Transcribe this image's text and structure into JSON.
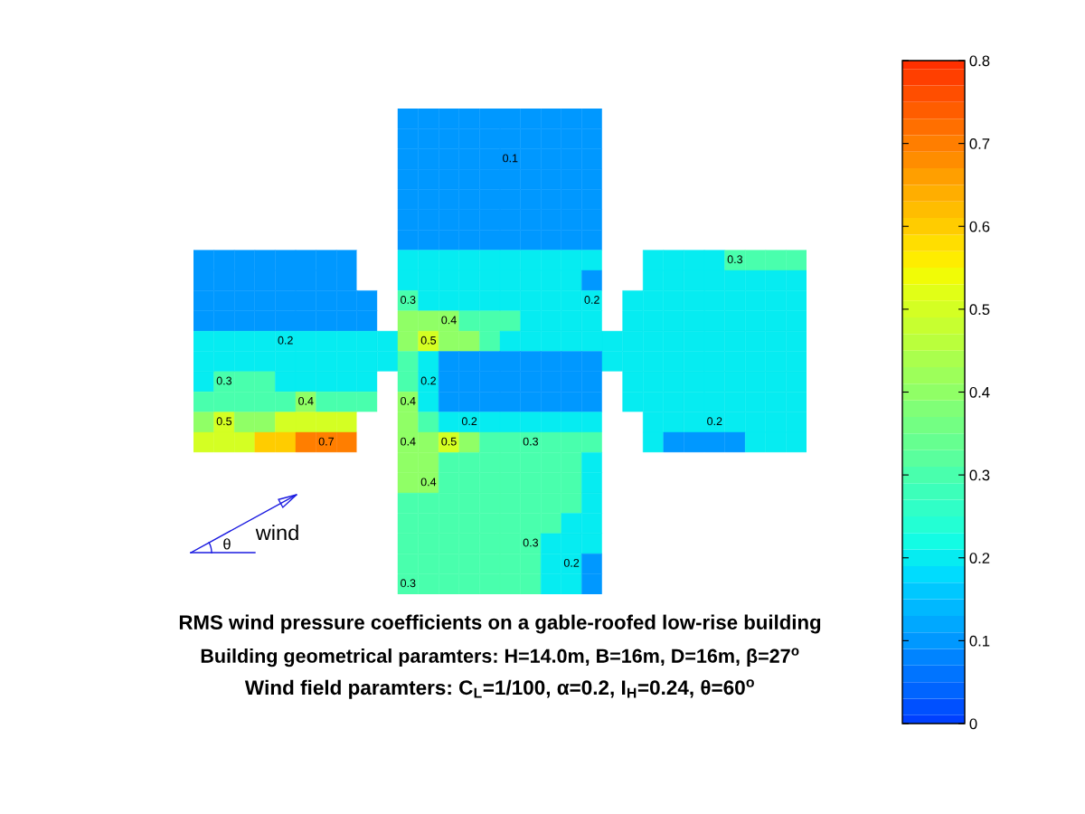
{
  "chart_data": {
    "type": "heatmap",
    "title": "RMS wind pressure coefficients on a gable-roofed low-rise building",
    "subtitle": "Building geometrical paramters: H=14.0m, B=16m, D=16m, β=27$^{o}$",
    "annotations": [
      "Wind field paramters: C$_{L}$=1/100, α=0.2, I$_{H}$=0.24, θ=60$^{o}$",
      "θ",
      "wind"
    ],
    "categories": [
      null,
      null,
      null,
      null,
      null,
      null,
      null,
      null,
      null,
      null,
      null,
      null,
      null,
      null,
      null,
      null,
      null,
      null,
      null,
      null,
      null,
      null,
      null,
      null,
      null,
      null,
      null,
      null,
      null,
      null
    ],
    "y_categories": [
      null,
      null,
      null,
      null,
      null,
      null,
      null,
      null,
      null,
      null,
      null,
      null,
      null,
      null,
      null,
      null,
      null,
      null,
      null,
      null,
      null,
      null,
      null,
      null
    ],
    "cells": [
      [
        null,
        null,
        null,
        null,
        null,
        null,
        null,
        null,
        null,
        null,
        0.1,
        0.1,
        0.1,
        0.1,
        0.1,
        0.1,
        0.1,
        0.1,
        0.1,
        0.1,
        null,
        null,
        null,
        null,
        null,
        null,
        null,
        null,
        null,
        null
      ],
      [
        null,
        null,
        null,
        null,
        null,
        null,
        null,
        null,
        null,
        null,
        0.1,
        0.1,
        0.1,
        0.1,
        0.1,
        0.1,
        0.1,
        0.1,
        0.1,
        0.1,
        null,
        null,
        null,
        null,
        null,
        null,
        null,
        null,
        null,
        null
      ],
      [
        null,
        null,
        null,
        null,
        null,
        null,
        null,
        null,
        null,
        null,
        0.1,
        0.1,
        0.1,
        0.1,
        0.1,
        0.1,
        0.1,
        0.1,
        0.1,
        0.1,
        null,
        null,
        null,
        null,
        null,
        null,
        null,
        null,
        null,
        null
      ],
      [
        null,
        null,
        null,
        null,
        null,
        null,
        null,
        null,
        null,
        null,
        0.1,
        0.1,
        0.1,
        0.1,
        0.1,
        0.1,
        0.1,
        0.1,
        0.1,
        0.1,
        null,
        null,
        null,
        null,
        null,
        null,
        null,
        null,
        null,
        null
      ],
      [
        null,
        null,
        null,
        null,
        null,
        null,
        null,
        null,
        null,
        null,
        0.1,
        0.1,
        0.1,
        0.1,
        0.1,
        0.1,
        0.1,
        0.1,
        0.1,
        0.1,
        null,
        null,
        null,
        null,
        null,
        null,
        null,
        null,
        null,
        null
      ],
      [
        null,
        null,
        null,
        null,
        null,
        null,
        null,
        null,
        null,
        null,
        0.1,
        0.1,
        0.1,
        0.1,
        0.1,
        0.1,
        0.1,
        0.1,
        0.1,
        0.1,
        null,
        null,
        null,
        null,
        null,
        null,
        null,
        null,
        null,
        null
      ],
      [
        null,
        null,
        null,
        null,
        null,
        null,
        null,
        null,
        null,
        null,
        0.1,
        0.1,
        0.1,
        0.1,
        0.1,
        0.1,
        0.1,
        0.1,
        0.1,
        0.1,
        null,
        null,
        null,
        null,
        null,
        null,
        null,
        null,
        null,
        null
      ],
      [
        0.1,
        0.1,
        0.1,
        0.1,
        0.1,
        0.1,
        0.1,
        0.1,
        null,
        null,
        0.2,
        0.2,
        0.2,
        0.2,
        0.2,
        0.2,
        0.2,
        0.2,
        0.2,
        0.2,
        null,
        null,
        0.2,
        0.2,
        0.2,
        0.2,
        0.3,
        0.3,
        0.3,
        0.3
      ],
      [
        0.1,
        0.1,
        0.1,
        0.1,
        0.1,
        0.1,
        0.1,
        0.1,
        null,
        null,
        0.2,
        0.2,
        0.2,
        0.2,
        0.2,
        0.2,
        0.2,
        0.2,
        0.2,
        0.1,
        null,
        null,
        0.2,
        0.2,
        0.2,
        0.2,
        0.2,
        0.2,
        0.2,
        0.2
      ],
      [
        0.1,
        0.1,
        0.1,
        0.1,
        0.1,
        0.1,
        0.1,
        0.1,
        0.1,
        null,
        0.3,
        0.2,
        0.2,
        0.2,
        0.2,
        0.2,
        0.2,
        0.2,
        0.2,
        0.2,
        null,
        0.2,
        0.2,
        0.2,
        0.2,
        0.2,
        0.2,
        0.2,
        0.2,
        0.2
      ],
      [
        0.1,
        0.1,
        0.1,
        0.1,
        0.1,
        0.1,
        0.1,
        0.1,
        0.1,
        null,
        0.4,
        0.4,
        0.4,
        0.3,
        0.3,
        0.3,
        0.2,
        0.2,
        0.2,
        0.2,
        null,
        0.2,
        0.2,
        0.2,
        0.2,
        0.2,
        0.2,
        0.2,
        0.2,
        0.2
      ],
      [
        0.2,
        0.2,
        0.2,
        0.2,
        0.2,
        0.2,
        0.2,
        0.2,
        0.2,
        0.2,
        0.4,
        0.5,
        0.4,
        0.4,
        0.3,
        0.2,
        0.2,
        0.2,
        0.2,
        0.2,
        0.2,
        0.2,
        0.2,
        0.2,
        0.2,
        0.2,
        0.2,
        0.2,
        0.2,
        0.2
      ],
      [
        0.2,
        0.2,
        0.2,
        0.2,
        0.2,
        0.2,
        0.2,
        0.2,
        0.2,
        0.2,
        0.3,
        0.2,
        0.1,
        0.1,
        0.1,
        0.1,
        0.1,
        0.1,
        0.1,
        0.1,
        0.2,
        0.2,
        0.2,
        0.2,
        0.2,
        0.2,
        0.2,
        0.2,
        0.2,
        0.2
      ],
      [
        0.2,
        0.3,
        0.3,
        0.3,
        0.2,
        0.2,
        0.2,
        0.2,
        0.2,
        null,
        0.3,
        0.2,
        0.1,
        0.1,
        0.1,
        0.1,
        0.1,
        0.1,
        0.1,
        0.1,
        null,
        0.2,
        0.2,
        0.2,
        0.2,
        0.2,
        0.2,
        0.2,
        0.2,
        0.2
      ],
      [
        0.3,
        0.3,
        0.3,
        0.3,
        0.3,
        0.4,
        0.3,
        0.3,
        0.3,
        null,
        0.4,
        0.2,
        0.1,
        0.1,
        0.1,
        0.1,
        0.1,
        0.1,
        0.1,
        0.1,
        null,
        0.2,
        0.2,
        0.2,
        0.2,
        0.2,
        0.2,
        0.2,
        0.2,
        0.2
      ],
      [
        0.4,
        0.5,
        0.4,
        0.4,
        0.5,
        0.5,
        0.5,
        0.5,
        null,
        null,
        0.4,
        0.3,
        0.2,
        0.2,
        0.2,
        0.2,
        0.2,
        0.2,
        0.2,
        0.2,
        null,
        null,
        0.2,
        0.2,
        0.2,
        0.2,
        0.2,
        0.2,
        0.2,
        0.2
      ],
      [
        0.5,
        0.5,
        0.5,
        0.6,
        0.6,
        0.7,
        0.7,
        0.7,
        null,
        null,
        0.4,
        0.4,
        0.5,
        0.4,
        0.3,
        0.3,
        0.3,
        0.3,
        0.3,
        0.3,
        null,
        null,
        0.2,
        0.1,
        0.1,
        0.1,
        0.1,
        0.2,
        0.2,
        0.2
      ],
      [
        null,
        null,
        null,
        null,
        null,
        null,
        null,
        null,
        null,
        null,
        0.4,
        0.4,
        0.3,
        0.3,
        0.3,
        0.3,
        0.3,
        0.3,
        0.3,
        0.2,
        null,
        null,
        null,
        null,
        null,
        null,
        null,
        null,
        null,
        null
      ],
      [
        null,
        null,
        null,
        null,
        null,
        null,
        null,
        null,
        null,
        null,
        0.4,
        0.4,
        0.3,
        0.3,
        0.3,
        0.3,
        0.3,
        0.3,
        0.3,
        0.2,
        null,
        null,
        null,
        null,
        null,
        null,
        null,
        null,
        null,
        null
      ],
      [
        null,
        null,
        null,
        null,
        null,
        null,
        null,
        null,
        null,
        null,
        0.3,
        0.3,
        0.3,
        0.3,
        0.3,
        0.3,
        0.3,
        0.3,
        0.3,
        0.2,
        null,
        null,
        null,
        null,
        null,
        null,
        null,
        null,
        null,
        null
      ],
      [
        null,
        null,
        null,
        null,
        null,
        null,
        null,
        null,
        null,
        null,
        0.3,
        0.3,
        0.3,
        0.3,
        0.3,
        0.3,
        0.3,
        0.3,
        0.2,
        0.2,
        null,
        null,
        null,
        null,
        null,
        null,
        null,
        null,
        null,
        null
      ],
      [
        null,
        null,
        null,
        null,
        null,
        null,
        null,
        null,
        null,
        null,
        0.3,
        0.3,
        0.3,
        0.3,
        0.3,
        0.3,
        0.3,
        0.2,
        0.2,
        0.2,
        null,
        null,
        null,
        null,
        null,
        null,
        null,
        null,
        null,
        null
      ],
      [
        null,
        null,
        null,
        null,
        null,
        null,
        null,
        null,
        null,
        null,
        0.3,
        0.3,
        0.3,
        0.3,
        0.3,
        0.3,
        0.3,
        0.2,
        0.2,
        0.1,
        null,
        null,
        null,
        null,
        null,
        null,
        null,
        null,
        null,
        null
      ],
      [
        null,
        null,
        null,
        null,
        null,
        null,
        null,
        null,
        null,
        null,
        0.3,
        0.3,
        0.3,
        0.3,
        0.3,
        0.3,
        0.3,
        0.2,
        0.2,
        0.1,
        null,
        null,
        null,
        null,
        null,
        null,
        null,
        null,
        null,
        null
      ]
    ],
    "cell_labels": [
      [
        null,
        null,
        null,
        null,
        null,
        null,
        null,
        null,
        null,
        null,
        null,
        null,
        null,
        null,
        null,
        null,
        null,
        null,
        null,
        null,
        null,
        null,
        null,
        null,
        null,
        null,
        null,
        null,
        null,
        null
      ],
      [
        null,
        null,
        null,
        null,
        null,
        null,
        null,
        null,
        null,
        null,
        null,
        null,
        null,
        null,
        null,
        null,
        null,
        null,
        null,
        null,
        null,
        null,
        null,
        null,
        null,
        null,
        null,
        null,
        null,
        null
      ],
      [
        null,
        null,
        null,
        null,
        null,
        null,
        null,
        null,
        null,
        null,
        null,
        null,
        null,
        null,
        null,
        "0.1",
        null,
        null,
        null,
        null,
        null,
        null,
        null,
        null,
        null,
        null,
        null,
        null,
        null,
        null
      ],
      [
        null,
        null,
        null,
        null,
        null,
        null,
        null,
        null,
        null,
        null,
        null,
        null,
        null,
        null,
        null,
        null,
        null,
        null,
        null,
        null,
        null,
        null,
        null,
        null,
        null,
        null,
        null,
        null,
        null,
        null
      ],
      [
        null,
        null,
        null,
        null,
        null,
        null,
        null,
        null,
        null,
        null,
        null,
        null,
        null,
        null,
        null,
        null,
        null,
        null,
        null,
        null,
        null,
        null,
        null,
        null,
        null,
        null,
        null,
        null,
        null,
        null
      ],
      [
        null,
        null,
        null,
        null,
        null,
        null,
        null,
        null,
        null,
        null,
        null,
        null,
        null,
        null,
        null,
        null,
        null,
        null,
        null,
        null,
        null,
        null,
        null,
        null,
        null,
        null,
        null,
        null,
        null,
        null
      ],
      [
        null,
        null,
        null,
        null,
        null,
        null,
        null,
        null,
        null,
        null,
        null,
        null,
        null,
        null,
        null,
        null,
        null,
        null,
        null,
        null,
        null,
        null,
        null,
        null,
        null,
        null,
        null,
        null,
        null,
        null
      ],
      [
        null,
        null,
        null,
        null,
        null,
        null,
        null,
        null,
        null,
        null,
        null,
        null,
        null,
        null,
        null,
        null,
        null,
        null,
        null,
        null,
        null,
        null,
        null,
        null,
        null,
        null,
        "0.3",
        null,
        null,
        null
      ],
      [
        null,
        null,
        null,
        null,
        null,
        null,
        null,
        null,
        null,
        null,
        null,
        null,
        null,
        null,
        null,
        null,
        null,
        null,
        null,
        null,
        null,
        null,
        null,
        null,
        null,
        null,
        null,
        null,
        null,
        null
      ],
      [
        null,
        null,
        null,
        null,
        null,
        null,
        null,
        null,
        null,
        null,
        "0.3",
        null,
        null,
        null,
        null,
        null,
        null,
        null,
        null,
        "0.2",
        null,
        null,
        null,
        null,
        null,
        null,
        null,
        null,
        null,
        null
      ],
      [
        null,
        null,
        null,
        null,
        null,
        null,
        null,
        null,
        null,
        null,
        null,
        null,
        "0.4",
        null,
        null,
        null,
        null,
        null,
        null,
        null,
        null,
        null,
        null,
        null,
        null,
        null,
        null,
        null,
        null,
        null
      ],
      [
        null,
        null,
        null,
        null,
        "0.2",
        null,
        null,
        null,
        null,
        null,
        null,
        "0.5",
        null,
        null,
        null,
        null,
        null,
        null,
        null,
        null,
        null,
        null,
        null,
        null,
        null,
        null,
        null,
        null,
        null,
        null
      ],
      [
        null,
        null,
        null,
        null,
        null,
        null,
        null,
        null,
        null,
        null,
        null,
        null,
        null,
        null,
        null,
        null,
        null,
        null,
        null,
        null,
        null,
        null,
        null,
        null,
        null,
        null,
        null,
        null,
        null,
        null
      ],
      [
        null,
        "0.3",
        null,
        null,
        null,
        null,
        null,
        null,
        null,
        null,
        null,
        "0.2",
        null,
        null,
        null,
        null,
        null,
        null,
        null,
        null,
        null,
        null,
        null,
        null,
        null,
        null,
        null,
        null,
        null,
        null
      ],
      [
        null,
        null,
        null,
        null,
        null,
        "0.4",
        null,
        null,
        null,
        null,
        "0.4",
        null,
        null,
        null,
        null,
        null,
        null,
        null,
        null,
        null,
        null,
        null,
        null,
        null,
        null,
        null,
        null,
        null,
        null,
        null
      ],
      [
        null,
        "0.5",
        null,
        null,
        null,
        null,
        null,
        null,
        null,
        null,
        null,
        null,
        null,
        "0.2",
        null,
        null,
        null,
        null,
        null,
        null,
        null,
        null,
        null,
        null,
        null,
        "0.2",
        null,
        null,
        null,
        null
      ],
      [
        null,
        null,
        null,
        null,
        null,
        null,
        "0.7",
        null,
        null,
        null,
        "0.4",
        null,
        "0.5",
        null,
        null,
        null,
        "0.3",
        null,
        null,
        null,
        null,
        null,
        null,
        null,
        null,
        null,
        null,
        null,
        null,
        null
      ],
      [
        null,
        null,
        null,
        null,
        null,
        null,
        null,
        null,
        null,
        null,
        null,
        null,
        null,
        null,
        null,
        null,
        null,
        null,
        null,
        null,
        null,
        null,
        null,
        null,
        null,
        null,
        null,
        null,
        null,
        null
      ],
      [
        null,
        null,
        null,
        null,
        null,
        null,
        null,
        null,
        null,
        null,
        null,
        "0.4",
        null,
        null,
        null,
        null,
        null,
        null,
        null,
        null,
        null,
        null,
        null,
        null,
        null,
        null,
        null,
        null,
        null,
        null
      ],
      [
        null,
        null,
        null,
        null,
        null,
        null,
        null,
        null,
        null,
        null,
        null,
        null,
        null,
        null,
        null,
        null,
        null,
        null,
        null,
        null,
        null,
        null,
        null,
        null,
        null,
        null,
        null,
        null,
        null,
        null
      ],
      [
        null,
        null,
        null,
        null,
        null,
        null,
        null,
        null,
        null,
        null,
        null,
        null,
        null,
        null,
        null,
        null,
        null,
        null,
        null,
        null,
        null,
        null,
        null,
        null,
        null,
        null,
        null,
        null,
        null,
        null
      ],
      [
        null,
        null,
        null,
        null,
        null,
        null,
        null,
        null,
        null,
        null,
        null,
        null,
        null,
        null,
        null,
        null,
        "0.3",
        null,
        null,
        null,
        null,
        null,
        null,
        null,
        null,
        null,
        null,
        null,
        null,
        null
      ],
      [
        null,
        null,
        null,
        null,
        null,
        null,
        null,
        null,
        null,
        null,
        null,
        null,
        null,
        null,
        null,
        null,
        null,
        null,
        "0.2",
        null,
        null,
        null,
        null,
        null,
        null,
        null,
        null,
        null,
        null,
        null
      ],
      [
        null,
        null,
        null,
        null,
        null,
        null,
        null,
        null,
        null,
        null,
        "0.3",
        null,
        null,
        null,
        null,
        null,
        null,
        null,
        null,
        null,
        null,
        null,
        null,
        null,
        null,
        null,
        null,
        null,
        null,
        null
      ]
    ],
    "clim": [
      0,
      0.8
    ],
    "cticks": [
      0,
      0.1,
      0.2,
      0.3,
      0.4,
      0.5,
      0.6,
      0.7,
      0.8
    ],
    "tick_labels": false
  }
}
